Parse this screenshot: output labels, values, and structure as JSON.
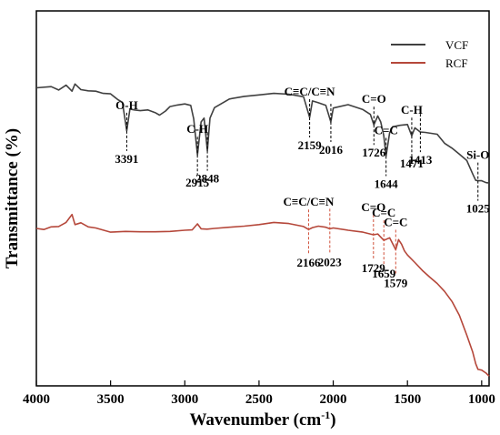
{
  "chart_data": {
    "type": "line",
    "xlabel": "Wavenumber (cm",
    "xlabel_sup": "-1",
    "xlabel_close": ")",
    "ylabel": "Transmittance (%)",
    "xlim": [
      4000,
      950
    ],
    "x_reversed": true,
    "ylim": [
      0,
      100
    ],
    "y_ticks_shown": false,
    "grid": false,
    "x_ticks": [
      {
        "value": 4000,
        "label": "4000"
      },
      {
        "value": 3500,
        "label": "3500"
      },
      {
        "value": 3000,
        "label": "3000"
      },
      {
        "value": 2500,
        "label": "2500"
      },
      {
        "value": 2000,
        "label": "2000"
      },
      {
        "value": 1500,
        "label": "1500"
      },
      {
        "value": 1000,
        "label": "1000"
      }
    ],
    "legend": {
      "position": "top-right",
      "entries": [
        {
          "name": "VCF",
          "color": "#404040"
        },
        {
          "name": "RCF",
          "color": "#b5473a"
        }
      ]
    },
    "series": [
      {
        "name": "VCF",
        "color": "#404040",
        "points": [
          [
            4000,
            79.5
          ],
          [
            3900,
            79.8
          ],
          [
            3850,
            78.9
          ],
          [
            3800,
            80.2
          ],
          [
            3760,
            78.6
          ],
          [
            3740,
            80.5
          ],
          [
            3700,
            79.0
          ],
          [
            3650,
            78.7
          ],
          [
            3600,
            78.6
          ],
          [
            3550,
            78.0
          ],
          [
            3500,
            77.9
          ],
          [
            3450,
            76.3
          ],
          [
            3420,
            75.6
          ],
          [
            3391,
            68.0
          ],
          [
            3370,
            73.8
          ],
          [
            3340,
            73.6
          ],
          [
            3300,
            73.4
          ],
          [
            3250,
            73.6
          ],
          [
            3200,
            72.9
          ],
          [
            3170,
            72.2
          ],
          [
            3130,
            73.3
          ],
          [
            3100,
            74.5
          ],
          [
            3050,
            74.9
          ],
          [
            3000,
            75.2
          ],
          [
            2960,
            74.8
          ],
          [
            2940,
            71.2
          ],
          [
            2915,
            61.6
          ],
          [
            2890,
            70.4
          ],
          [
            2870,
            71.4
          ],
          [
            2848,
            62.7
          ],
          [
            2830,
            71.4
          ],
          [
            2800,
            74.2
          ],
          [
            2700,
            76.5
          ],
          [
            2600,
            77.2
          ],
          [
            2500,
            77.6
          ],
          [
            2400,
            78.0
          ],
          [
            2300,
            77.8
          ],
          [
            2200,
            77.1
          ],
          [
            2159,
            71.6
          ],
          [
            2140,
            76.0
          ],
          [
            2100,
            75.5
          ],
          [
            2050,
            74.8
          ],
          [
            2016,
            70.4
          ],
          [
            2000,
            74.1
          ],
          [
            1900,
            75.0
          ],
          [
            1800,
            73.7
          ],
          [
            1750,
            72.4
          ],
          [
            1726,
            69.6
          ],
          [
            1700,
            72.0
          ],
          [
            1680,
            70.4
          ],
          [
            1660,
            66.8
          ],
          [
            1644,
            61.3
          ],
          [
            1620,
            67.5
          ],
          [
            1600,
            69.1
          ],
          [
            1550,
            69.5
          ],
          [
            1500,
            69.7
          ],
          [
            1471,
            66.7
          ],
          [
            1450,
            68.8
          ],
          [
            1413,
            67.7
          ],
          [
            1380,
            67.6
          ],
          [
            1300,
            67.1
          ],
          [
            1250,
            64.7
          ],
          [
            1200,
            63.4
          ],
          [
            1150,
            61.8
          ],
          [
            1100,
            60.1
          ],
          [
            1060,
            56.5
          ],
          [
            1040,
            54.8
          ],
          [
            1025,
            54.7
          ],
          [
            1000,
            54.7
          ],
          [
            970,
            54.2
          ],
          [
            950,
            54.1
          ]
        ]
      },
      {
        "name": "RCF",
        "color": "#b5473a",
        "points": [
          [
            4000,
            42.0
          ],
          [
            3950,
            41.7
          ],
          [
            3900,
            42.4
          ],
          [
            3850,
            42.5
          ],
          [
            3800,
            43.6
          ],
          [
            3760,
            45.7
          ],
          [
            3740,
            43.0
          ],
          [
            3700,
            43.5
          ],
          [
            3650,
            42.4
          ],
          [
            3600,
            42.1
          ],
          [
            3500,
            41.0
          ],
          [
            3400,
            41.2
          ],
          [
            3300,
            41.1
          ],
          [
            3200,
            41.1
          ],
          [
            3100,
            41.2
          ],
          [
            3000,
            41.5
          ],
          [
            2950,
            41.6
          ],
          [
            2915,
            43.2
          ],
          [
            2890,
            41.9
          ],
          [
            2850,
            41.8
          ],
          [
            2800,
            42.0
          ],
          [
            2700,
            42.3
          ],
          [
            2600,
            42.6
          ],
          [
            2500,
            43.0
          ],
          [
            2400,
            43.6
          ],
          [
            2300,
            43.3
          ],
          [
            2200,
            42.5
          ],
          [
            2166,
            41.7
          ],
          [
            2140,
            42.2
          ],
          [
            2100,
            42.6
          ],
          [
            2050,
            42.3
          ],
          [
            2023,
            41.9
          ],
          [
            2000,
            42.1
          ],
          [
            1900,
            41.5
          ],
          [
            1800,
            41.0
          ],
          [
            1729,
            40.3
          ],
          [
            1700,
            40.5
          ],
          [
            1659,
            38.8
          ],
          [
            1620,
            39.5
          ],
          [
            1579,
            36.3
          ],
          [
            1560,
            39.0
          ],
          [
            1540,
            37.8
          ],
          [
            1520,
            36.0
          ],
          [
            1500,
            34.9
          ],
          [
            1450,
            32.9
          ],
          [
            1400,
            30.8
          ],
          [
            1350,
            29.0
          ],
          [
            1300,
            27.3
          ],
          [
            1250,
            25.2
          ],
          [
            1200,
            22.5
          ],
          [
            1150,
            18.8
          ],
          [
            1100,
            13.5
          ],
          [
            1060,
            9.0
          ],
          [
            1040,
            5.9
          ],
          [
            1025,
            4.4
          ],
          [
            1000,
            4.2
          ],
          [
            970,
            3.4
          ],
          [
            950,
            2.6
          ]
        ]
      }
    ],
    "annotations": [
      {
        "group": "VCF",
        "label": "O-H",
        "label_side": "above",
        "x": 3391,
        "number": "3391"
      },
      {
        "group": "VCF",
        "label": "C-H",
        "label_side": "above",
        "x": 2915,
        "number": "2915"
      },
      {
        "group": "VCF",
        "label": "",
        "label_side": "",
        "x": 2848,
        "number": "2848"
      },
      {
        "group": "VCF",
        "label": "C≡C/C≡N",
        "label_side": "above",
        "x": 2159,
        "number": "2159"
      },
      {
        "group": "VCF",
        "label": "",
        "label_side": "",
        "x": 2016,
        "number": "2016"
      },
      {
        "group": "VCF",
        "label": "C=O",
        "label_side": "above",
        "x": 1726,
        "number": "1726"
      },
      {
        "group": "VCF",
        "label": "C=C",
        "label_side": "above",
        "x": 1644,
        "number": "1644"
      },
      {
        "group": "VCF",
        "label": "C-H",
        "label_side": "above",
        "x": 1471,
        "number": "1471"
      },
      {
        "group": "VCF",
        "label": "",
        "label_side": "",
        "x": 1413,
        "number": "1413"
      },
      {
        "group": "VCF",
        "label": "Si-O",
        "label_side": "above",
        "x": 1025,
        "number": "1025"
      },
      {
        "group": "RCF",
        "label": "C≡C/C≡N",
        "label_side": "above",
        "x": 2166,
        "number": "2166"
      },
      {
        "group": "RCF",
        "label": "",
        "label_side": "",
        "x": 2023,
        "number": "2023"
      },
      {
        "group": "RCF",
        "label": "C=O",
        "label_side": "above",
        "x": 1729,
        "number": "1729"
      },
      {
        "group": "RCF",
        "label": "C=C",
        "label_side": "above",
        "x": 1659,
        "number": "1659"
      },
      {
        "group": "RCF",
        "label": "C=C",
        "label_side": "above",
        "x": 1579,
        "number": "1579"
      }
    ]
  }
}
